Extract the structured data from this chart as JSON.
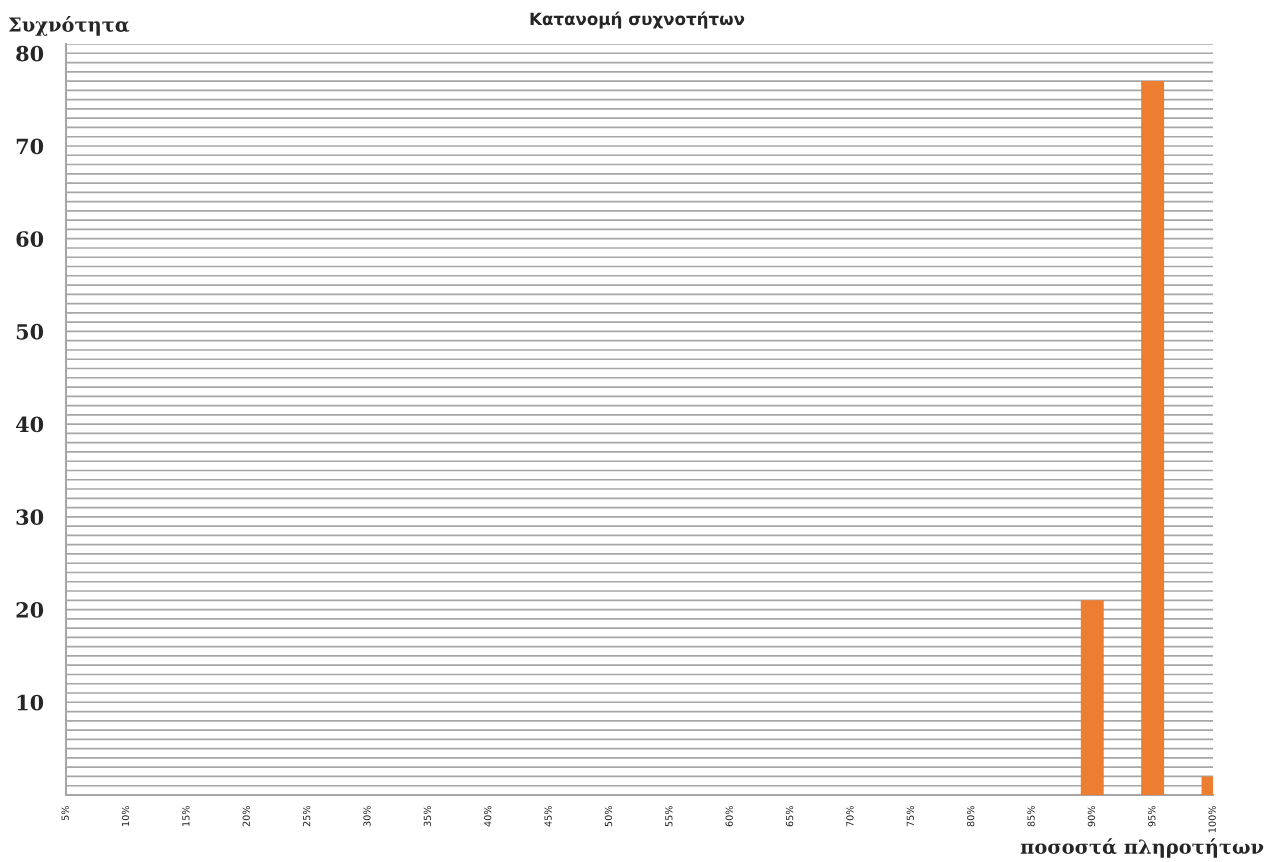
{
  "chart_data": {
    "type": "bar",
    "title": "Κατανομή συχνοτήτων",
    "xlabel": "ποσοστά πληροτήτων",
    "ylabel": "Συχνότητα",
    "x": [
      90,
      95,
      100
    ],
    "values": [
      21,
      77,
      2
    ],
    "color": "#ed7d31",
    "xlim": [
      5,
      100
    ],
    "xticks": [
      {
        "value": 5,
        "label": "5%"
      },
      {
        "value": 10,
        "label": "10%"
      },
      {
        "value": 15,
        "label": "15%"
      },
      {
        "value": 20,
        "label": "20%"
      },
      {
        "value": 25,
        "label": "25%"
      },
      {
        "value": 30,
        "label": "30%"
      },
      {
        "value": 35,
        "label": "35%"
      },
      {
        "value": 40,
        "label": "40%"
      },
      {
        "value": 45,
        "label": "45%"
      },
      {
        "value": 50,
        "label": "50%"
      },
      {
        "value": 55,
        "label": "55%"
      },
      {
        "value": 60,
        "label": "60%"
      },
      {
        "value": 65,
        "label": "65%"
      },
      {
        "value": 70,
        "label": "70%"
      },
      {
        "value": 75,
        "label": "75%"
      },
      {
        "value": 80,
        "label": "80%"
      },
      {
        "value": 85,
        "label": "85%"
      },
      {
        "value": 90,
        "label": "90%"
      },
      {
        "value": 95,
        "label": "95%"
      },
      {
        "value": 100,
        "label": "100%"
      }
    ],
    "ylim": [
      0,
      81
    ],
    "yticks": [
      {
        "value": 1,
        "label": null
      },
      {
        "value": 2,
        "label": null
      },
      {
        "value": 3,
        "label": null
      },
      {
        "value": 4,
        "label": null
      },
      {
        "value": 5,
        "label": null
      },
      {
        "value": 6,
        "label": null
      },
      {
        "value": 7,
        "label": null
      },
      {
        "value": 8,
        "label": null
      },
      {
        "value": 9,
        "label": null
      },
      10,
      {
        "value": 11,
        "label": null
      },
      {
        "value": 12,
        "label": null
      },
      {
        "value": 13,
        "label": null
      },
      {
        "value": 14,
        "label": null
      },
      {
        "value": 15,
        "label": null
      },
      {
        "value": 16,
        "label": null
      },
      {
        "value": 17,
        "label": null
      },
      {
        "value": 18,
        "label": null
      },
      {
        "value": 19,
        "label": null
      },
      20,
      {
        "value": 21,
        "label": null
      },
      {
        "value": 22,
        "label": null
      },
      {
        "value": 23,
        "label": null
      },
      {
        "value": 24,
        "label": null
      },
      {
        "value": 25,
        "label": null
      },
      {
        "value": 26,
        "label": null
      },
      {
        "value": 27,
        "label": null
      },
      {
        "value": 28,
        "label": null
      },
      {
        "value": 29,
        "label": null
      },
      30,
      {
        "value": 31,
        "label": null
      },
      {
        "value": 32,
        "label": null
      },
      {
        "value": 33,
        "label": null
      },
      {
        "value": 34,
        "label": null
      },
      {
        "value": 35,
        "label": null
      },
      {
        "value": 36,
        "label": null
      },
      {
        "value": 37,
        "label": null
      },
      {
        "value": 38,
        "label": null
      },
      {
        "value": 39,
        "label": null
      },
      40,
      {
        "value": 41,
        "label": null
      },
      {
        "value": 42,
        "label": null
      },
      {
        "value": 43,
        "label": null
      },
      {
        "value": 44,
        "label": null
      },
      {
        "value": 45,
        "label": null
      },
      {
        "value": 46,
        "label": null
      },
      {
        "value": 47,
        "label": null
      },
      {
        "value": 48,
        "label": null
      },
      {
        "value": 49,
        "label": null
      },
      50,
      {
        "value": 51,
        "label": null
      },
      {
        "value": 52,
        "label": null
      },
      {
        "value": 53,
        "label": null
      },
      {
        "value": 54,
        "label": null
      },
      {
        "value": 55,
        "label": null
      },
      {
        "value": 56,
        "label": null
      },
      {
        "value": 57,
        "label": null
      },
      {
        "value": 58,
        "label": null
      },
      {
        "value": 59,
        "label": null
      },
      60,
      {
        "value": 61,
        "label": null
      },
      {
        "value": 62,
        "label": null
      },
      {
        "value": 63,
        "label": null
      },
      {
        "value": 64,
        "label": null
      },
      {
        "value": 65,
        "label": null
      },
      {
        "value": 66,
        "label": null
      },
      {
        "value": 67,
        "label": null
      },
      {
        "value": 68,
        "label": null
      },
      {
        "value": 69,
        "label": null
      },
      70,
      {
        "value": 71,
        "label": null
      },
      {
        "value": 72,
        "label": null
      },
      {
        "value": 73,
        "label": null
      },
      {
        "value": 74,
        "label": null
      },
      {
        "value": 75,
        "label": null
      },
      {
        "value": 76,
        "label": null
      },
      {
        "value": 77,
        "label": null
      },
      {
        "value": 78,
        "label": null
      },
      {
        "value": 79,
        "label": null
      },
      80,
      {
        "value": 81,
        "label": null
      }
    ],
    "grid": "y"
  }
}
